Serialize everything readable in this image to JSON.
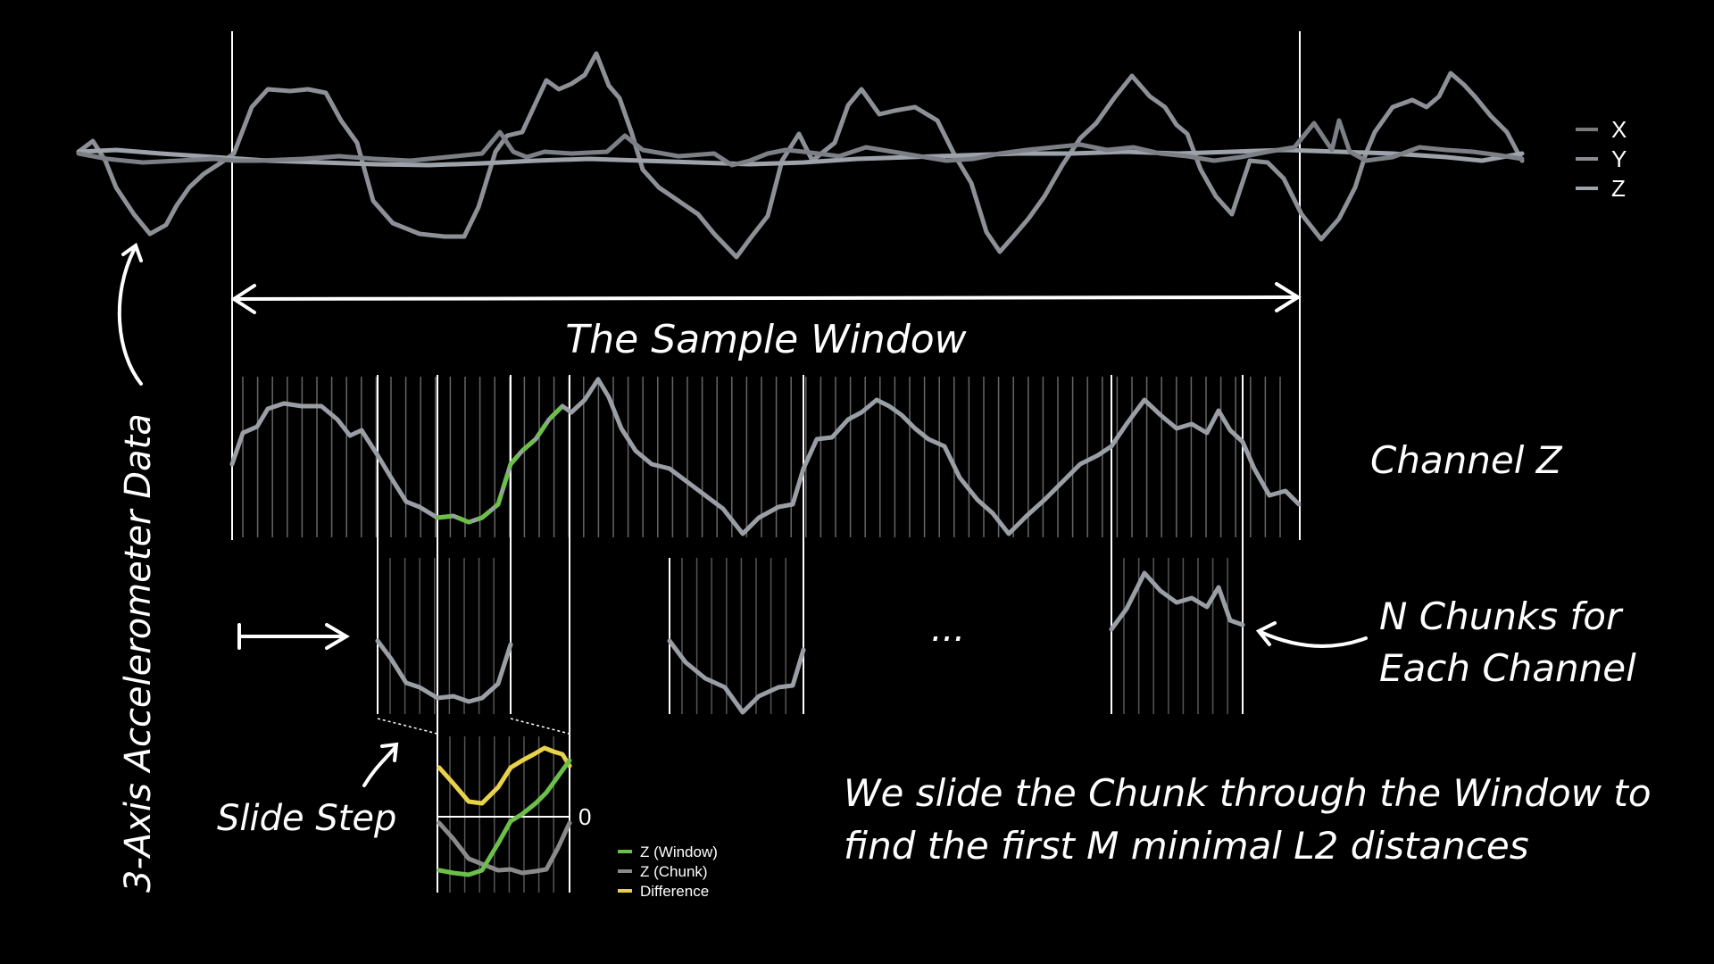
{
  "top_legend": [
    {
      "label": "X",
      "color": "#7a7a7a"
    },
    {
      "label": "Y",
      "color": "#8a8d92"
    },
    {
      "label": "Z",
      "color": "#9ea3ab"
    }
  ],
  "labels": {
    "side": "3-Axis Accelerometer Data",
    "window": "The Sample Window",
    "channel": "Channel Z",
    "chunks": [
      "N Chunks for",
      "Each Channel"
    ],
    "ellipsis": "...",
    "slide_step": "Slide Step",
    "zero": "0",
    "caption": [
      "We slide the Chunk through the Window to",
      "find the first M minimal L2 distances"
    ]
  },
  "bottom_legend": [
    {
      "label": "Z (Window)",
      "color": "#6cc04a"
    },
    {
      "label": "Z (Chunk)",
      "color": "#8a8a8a"
    },
    {
      "label": "Difference",
      "color": "#e8d24a"
    }
  ],
  "colors": {
    "background": "#000000",
    "line": "#9a9ea5",
    "guide": "#ffffff"
  }
}
